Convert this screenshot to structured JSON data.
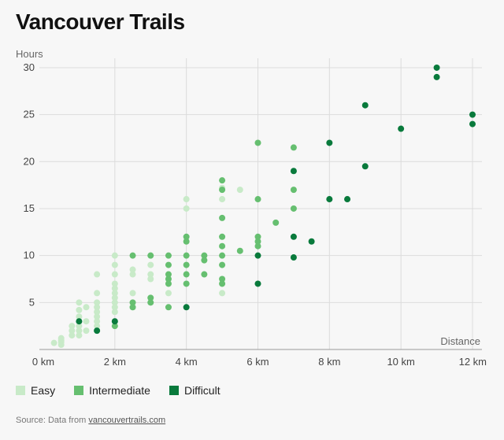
{
  "header": {
    "title": "Vancouver Trails"
  },
  "source": {
    "prefix": "Source: Data from",
    "link": "vancouvertrails.com"
  },
  "colors": {
    "Easy": "#c8eac8",
    "Intermediate": "#66bf70",
    "Difficult": "#097a3c"
  },
  "chart_data": {
    "type": "scatter",
    "xlabel": "Distance",
    "ylabel": "Hours",
    "xlim": [
      0,
      12
    ],
    "ylim": [
      0,
      30.5
    ],
    "x_ticks": [
      0,
      2,
      4,
      6,
      8,
      10,
      12
    ],
    "x_tick_labels": [
      "0 km",
      "2 km",
      "4 km",
      "6 km",
      "8 km",
      "10 km",
      "12 km"
    ],
    "y_ticks": [
      5,
      10,
      15,
      20,
      25,
      30
    ],
    "y_tick_labels": [
      "5",
      "10",
      "15",
      "20",
      "25",
      "30"
    ],
    "grid": true,
    "legend": "bottom-left",
    "series": [
      {
        "name": "Easy",
        "points": [
          [
            0.3,
            0.7
          ],
          [
            0.5,
            0.5
          ],
          [
            0.5,
            0.8
          ],
          [
            0.5,
            1.0
          ],
          [
            0.5,
            1.2
          ],
          [
            0.8,
            1.5
          ],
          [
            0.8,
            2.0
          ],
          [
            0.8,
            2.5
          ],
          [
            1.0,
            1.5
          ],
          [
            1.0,
            2.0
          ],
          [
            1.0,
            2.5
          ],
          [
            1.0,
            3.5
          ],
          [
            1.0,
            4.2
          ],
          [
            1.0,
            5.0
          ],
          [
            1.2,
            2.0
          ],
          [
            1.2,
            3.0
          ],
          [
            1.2,
            4.5
          ],
          [
            1.5,
            2.0
          ],
          [
            1.5,
            2.5
          ],
          [
            1.5,
            3.0
          ],
          [
            1.5,
            3.5
          ],
          [
            1.5,
            4.0
          ],
          [
            1.5,
            4.5
          ],
          [
            1.5,
            5.0
          ],
          [
            1.5,
            6.0
          ],
          [
            1.5,
            8.0
          ],
          [
            2.0,
            3.0
          ],
          [
            2.0,
            4.0
          ],
          [
            2.0,
            4.5
          ],
          [
            2.0,
            5.0
          ],
          [
            2.0,
            5.5
          ],
          [
            2.0,
            6.0
          ],
          [
            2.0,
            6.5
          ],
          [
            2.0,
            7.0
          ],
          [
            2.0,
            8.0
          ],
          [
            2.0,
            9.0
          ],
          [
            2.0,
            10.0
          ],
          [
            2.5,
            4.5
          ],
          [
            2.5,
            6.0
          ],
          [
            2.5,
            8.0
          ],
          [
            2.5,
            8.5
          ],
          [
            3.0,
            7.5
          ],
          [
            3.0,
            8.0
          ],
          [
            3.0,
            9.0
          ],
          [
            3.0,
            10.0
          ],
          [
            3.5,
            6.0
          ],
          [
            4.0,
            15.0
          ],
          [
            4.0,
            16.0
          ],
          [
            5.0,
            6.0
          ],
          [
            5.0,
            16.0
          ],
          [
            5.0,
            17.2
          ],
          [
            5.5,
            17.0
          ]
        ]
      },
      {
        "name": "Intermediate",
        "points": [
          [
            2.0,
            2.5
          ],
          [
            2.5,
            4.5
          ],
          [
            2.5,
            5.0
          ],
          [
            2.5,
            10.0
          ],
          [
            3.0,
            5.0
          ],
          [
            3.0,
            5.5
          ],
          [
            3.0,
            10.0
          ],
          [
            3.5,
            4.5
          ],
          [
            3.5,
            7.0
          ],
          [
            3.5,
            7.5
          ],
          [
            3.5,
            8.0
          ],
          [
            3.5,
            9.0
          ],
          [
            3.5,
            10.0
          ],
          [
            4.0,
            7.0
          ],
          [
            4.0,
            8.0
          ],
          [
            4.0,
            9.0
          ],
          [
            4.0,
            10.0
          ],
          [
            4.0,
            11.5
          ],
          [
            4.0,
            12.0
          ],
          [
            4.5,
            8.0
          ],
          [
            4.5,
            9.5
          ],
          [
            4.5,
            10.0
          ],
          [
            5.0,
            7.0
          ],
          [
            5.0,
            7.5
          ],
          [
            5.0,
            9.0
          ],
          [
            5.0,
            10.0
          ],
          [
            5.0,
            11.0
          ],
          [
            5.0,
            12.0
          ],
          [
            5.0,
            14.0
          ],
          [
            5.0,
            17.0
          ],
          [
            5.0,
            18.0
          ],
          [
            5.5,
            10.5
          ],
          [
            6.0,
            11.0
          ],
          [
            6.0,
            11.5
          ],
          [
            6.0,
            12.0
          ],
          [
            6.0,
            16.0
          ],
          [
            6.0,
            22.0
          ],
          [
            6.5,
            13.5
          ],
          [
            7.0,
            15.0
          ],
          [
            7.0,
            17.0
          ],
          [
            7.0,
            21.5
          ]
        ]
      },
      {
        "name": "Difficult",
        "points": [
          [
            1.0,
            3.0
          ],
          [
            1.5,
            2.0
          ],
          [
            2.0,
            3.0
          ],
          [
            4.0,
            4.5
          ],
          [
            6.0,
            7.0
          ],
          [
            6.0,
            10.0
          ],
          [
            7.0,
            9.8
          ],
          [
            7.0,
            12.0
          ],
          [
            7.0,
            19.0
          ],
          [
            7.5,
            11.5
          ],
          [
            8.0,
            16.0
          ],
          [
            8.0,
            22.0
          ],
          [
            8.5,
            16.0
          ],
          [
            9.0,
            19.5
          ],
          [
            9.0,
            26.0
          ],
          [
            10.0,
            23.5
          ],
          [
            11.0,
            29.0
          ],
          [
            11.0,
            30.0
          ],
          [
            12.0,
            24.0
          ],
          [
            12.0,
            25.0
          ]
        ]
      }
    ]
  }
}
